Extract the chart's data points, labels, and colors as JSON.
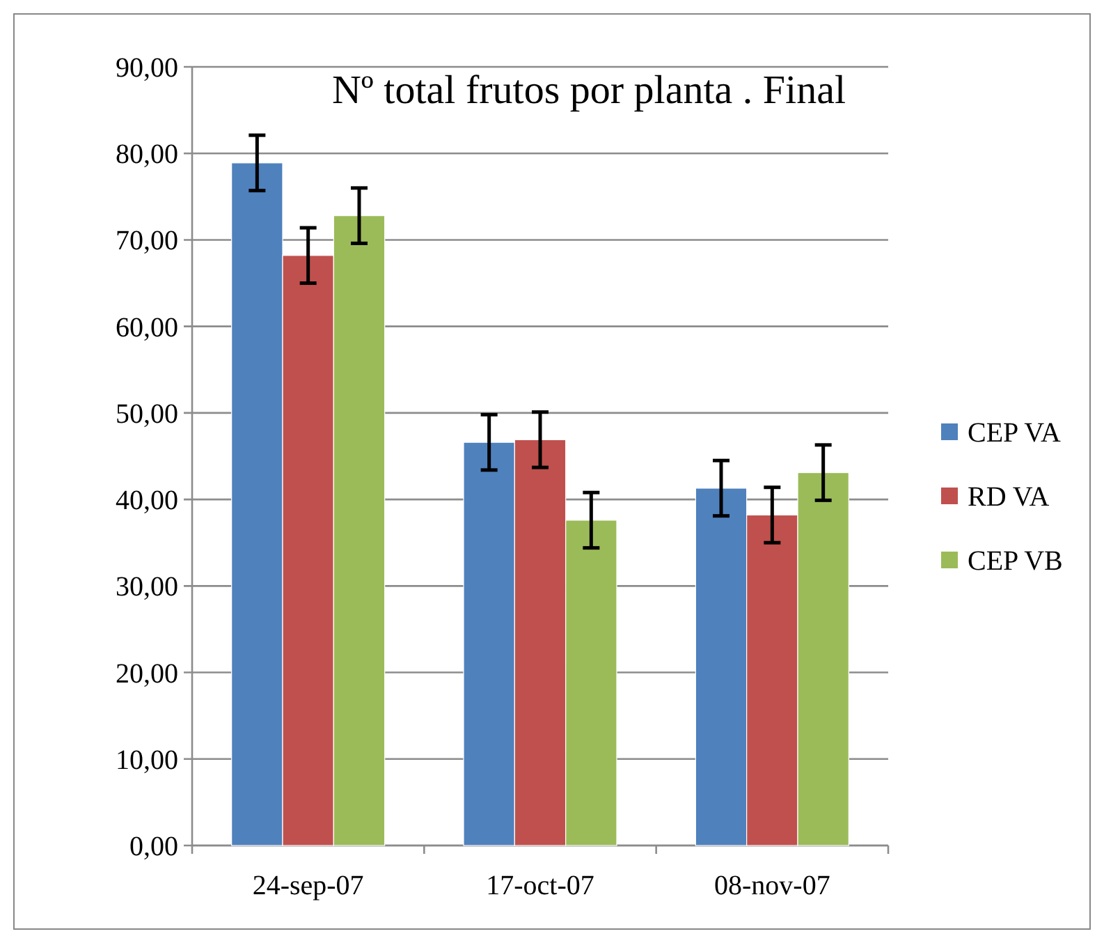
{
  "chart_data": {
    "type": "bar",
    "title": "Nº total frutos por planta . Final",
    "categories": [
      "24-sep-07",
      "17-oct-07",
      "08-nov-07"
    ],
    "series": [
      {
        "name": "CEP VA",
        "color": "#4f81bd",
        "values": [
          78.9,
          46.6,
          41.3
        ],
        "errors": [
          3.2,
          3.2,
          3.2
        ]
      },
      {
        "name": "RD VA",
        "color": "#c0504d",
        "values": [
          68.2,
          46.9,
          38.2
        ],
        "errors": [
          3.2,
          3.2,
          3.2
        ]
      },
      {
        "name": "CEP VB",
        "color": "#9bbb59",
        "values": [
          72.8,
          37.6,
          43.1
        ],
        "errors": [
          3.2,
          3.2,
          3.2
        ]
      }
    ],
    "ylim": [
      0,
      90
    ],
    "yticks": [
      {
        "value": 0,
        "label": "0,00"
      },
      {
        "value": 10,
        "label": "10,00"
      },
      {
        "value": 20,
        "label": "20,00"
      },
      {
        "value": 30,
        "label": "30,00"
      },
      {
        "value": 40,
        "label": "40,00"
      },
      {
        "value": 50,
        "label": "50,00"
      },
      {
        "value": 60,
        "label": "60,00"
      },
      {
        "value": 70,
        "label": "70,00"
      },
      {
        "value": 80,
        "label": "80,00"
      },
      {
        "value": 90,
        "label": "90,00"
      }
    ],
    "grid": "y",
    "legend": "right"
  }
}
